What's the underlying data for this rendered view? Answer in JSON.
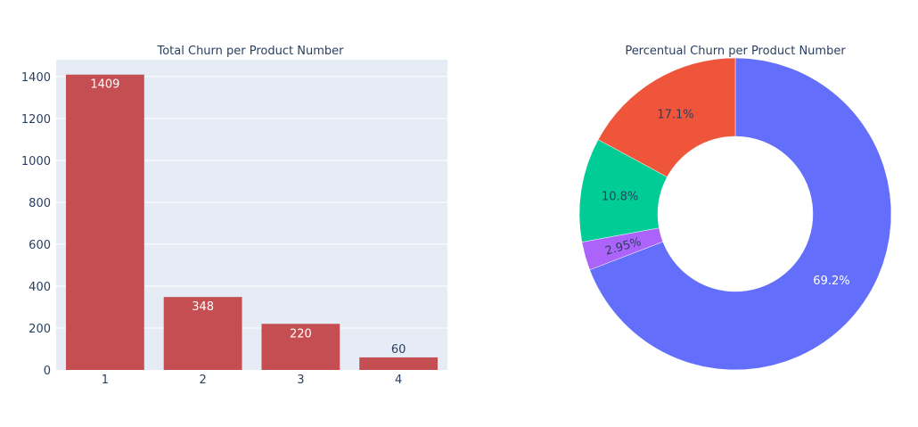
{
  "chart_data": [
    {
      "type": "bar",
      "title": "Total Churn per Product Number",
      "categories": [
        "1",
        "2",
        "3",
        "4"
      ],
      "values": [
        1409,
        348,
        220,
        60
      ],
      "data_labels": [
        "1409",
        "348",
        "220",
        "60"
      ],
      "ylim": [
        0,
        1480
      ],
      "yticks": [
        0,
        200,
        400,
        600,
        800,
        1000,
        1200,
        1400
      ],
      "ytick_labels": [
        "0",
        "200",
        "400",
        "600",
        "800",
        "1000",
        "1200",
        "1400"
      ],
      "xlabel": "",
      "ylabel": "",
      "grid": true,
      "colors": {
        "bar": "#c44e52",
        "plot_bg": "#e5ecf6",
        "grid": "#ffffff",
        "text": "#2a3f5f"
      }
    },
    {
      "type": "pie",
      "title": "Percentual Churn per Product Number",
      "hole": true,
      "slices": [
        {
          "value": 69.2,
          "label": "69.2%",
          "color": "#636efa"
        },
        {
          "value": 2.95,
          "label": "2.95%",
          "color": "#ab63fa"
        },
        {
          "value": 10.8,
          "label": "10.8%",
          "color": "#00cc96"
        },
        {
          "value": 17.1,
          "label": "17.1%",
          "color": "#ef553b"
        }
      ]
    }
  ]
}
